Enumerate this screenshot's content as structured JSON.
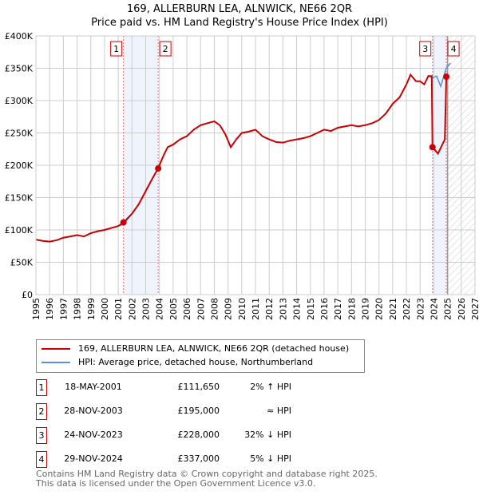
{
  "chart_data": {
    "type": "line",
    "title": "169, ALLERBURN LEA, ALNWICK, NE66 2QR",
    "subtitle": "Price paid vs. HM Land Registry's House Price Index (HPI)",
    "xlim": [
      1995,
      2027
    ],
    "ylim": [
      0,
      400000
    ],
    "x_ticks": [
      "1995",
      "1996",
      "1997",
      "1998",
      "1999",
      "2000",
      "2001",
      "2002",
      "2003",
      "2004",
      "2005",
      "2006",
      "2007",
      "2008",
      "2009",
      "2010",
      "2011",
      "2012",
      "2013",
      "2014",
      "2015",
      "2016",
      "2017",
      "2018",
      "2019",
      "2020",
      "2021",
      "2022",
      "2023",
      "2024",
      "2025",
      "2026",
      "2027"
    ],
    "y_ticks": [
      "£0",
      "£50K",
      "£100K",
      "£150K",
      "£200K",
      "£250K",
      "£300K",
      "£350K",
      "£400K"
    ],
    "grid": true,
    "series": [
      {
        "name": "169, ALLERBURN LEA, ALNWICK, NE66 2QR (detached house)",
        "color": "#cc0000",
        "x": [
          1995,
          1995.5,
          1996,
          1996.5,
          1997,
          1997.5,
          1998,
          1998.5,
          1999,
          1999.5,
          2000,
          2000.5,
          2001,
          2001.38,
          2002,
          2002.5,
          2003,
          2003.5,
          2003.9,
          2004.3,
          2004.6,
          2005,
          2005.5,
          2006,
          2006.5,
          2007,
          2007.5,
          2008,
          2008.4,
          2008.8,
          2009.2,
          2009.6,
          2010,
          2010.5,
          2011,
          2011.5,
          2012,
          2012.5,
          2013,
          2013.5,
          2014,
          2014.5,
          2015,
          2015.5,
          2016,
          2016.5,
          2017,
          2017.5,
          2018,
          2018.5,
          2019,
          2019.5,
          2020,
          2020.5,
          2021,
          2021.5,
          2022,
          2022.3,
          2022.7,
          2023,
          2023.3,
          2023.6,
          2023.85,
          2023.9,
          2024.3,
          2024.8,
          2024.91
        ],
        "y": [
          85000,
          83000,
          82000,
          84000,
          88000,
          90000,
          92000,
          90000,
          95000,
          98000,
          100000,
          103000,
          106000,
          111650,
          125000,
          140000,
          160000,
          180000,
          195000,
          215000,
          228000,
          232000,
          240000,
          245000,
          255000,
          262000,
          265000,
          268000,
          262000,
          248000,
          228000,
          240000,
          250000,
          252000,
          255000,
          245000,
          240000,
          236000,
          235000,
          238000,
          240000,
          242000,
          245000,
          250000,
          255000,
          253000,
          258000,
          260000,
          262000,
          260000,
          262000,
          265000,
          270000,
          280000,
          295000,
          305000,
          325000,
          340000,
          330000,
          330000,
          325000,
          338000,
          338000,
          228000,
          218000,
          240000,
          337000
        ]
      },
      {
        "name": "HPI: Average price, detached house, Northumberland",
        "color": "#5b8fd4",
        "x": [
          1995,
          1995.5,
          1996,
          1996.5,
          1997,
          1997.5,
          1998,
          1998.5,
          1999,
          1999.5,
          2000,
          2000.5,
          2001,
          2001.38,
          2002,
          2002.5,
          2003,
          2003.5,
          2003.9,
          2004.3,
          2004.6,
          2005,
          2005.5,
          2006,
          2006.5,
          2007,
          2007.5,
          2008,
          2008.4,
          2008.8,
          2009.2,
          2009.6,
          2010,
          2010.5,
          2011,
          2011.5,
          2012,
          2012.5,
          2013,
          2013.5,
          2014,
          2014.5,
          2015,
          2015.5,
          2016,
          2016.5,
          2017,
          2017.5,
          2018,
          2018.5,
          2019,
          2019.5,
          2020,
          2020.5,
          2021,
          2021.5,
          2022,
          2022.3,
          2022.7,
          2023,
          2023.3,
          2023.6,
          2023.9,
          2024.2,
          2024.5,
          2024.9,
          2025.2
        ],
        "y": [
          85000,
          83000,
          82000,
          84000,
          88000,
          90000,
          92000,
          90000,
          95000,
          98000,
          100000,
          103000,
          106000,
          109000,
          125000,
          140000,
          160000,
          180000,
          195000,
          215000,
          228000,
          232000,
          240000,
          245000,
          255000,
          262000,
          265000,
          268000,
          262000,
          248000,
          228000,
          240000,
          250000,
          252000,
          255000,
          245000,
          240000,
          236000,
          235000,
          238000,
          240000,
          242000,
          245000,
          250000,
          255000,
          253000,
          258000,
          260000,
          262000,
          260000,
          262000,
          265000,
          270000,
          280000,
          295000,
          305000,
          325000,
          340000,
          330000,
          330000,
          325000,
          338000,
          335000,
          338000,
          322000,
          350000,
          358000
        ]
      }
    ],
    "sales": [
      {
        "label": "1",
        "x": 2001.38,
        "y": 111650
      },
      {
        "label": "2",
        "x": 2003.91,
        "y": 195000
      },
      {
        "label": "3",
        "x": 2023.9,
        "y": 228000
      },
      {
        "label": "4",
        "x": 2024.91,
        "y": 337000
      }
    ],
    "shaded": [
      [
        2001.38,
        2003.91
      ],
      [
        2023.9,
        2024.91
      ]
    ],
    "future_from": 2025.0
  },
  "legend": [
    "169, ALLERBURN LEA, ALNWICK, NE66 2QR (detached house)",
    "HPI: Average price, detached house, Northumberland"
  ],
  "table": [
    {
      "n": "1",
      "date": "18-MAY-2001",
      "price": "£111,650",
      "hpi": "2% ↑ HPI"
    },
    {
      "n": "2",
      "date": "28-NOV-2003",
      "price": "£195,000",
      "hpi": "≈ HPI"
    },
    {
      "n": "3",
      "date": "24-NOV-2023",
      "price": "£228,000",
      "hpi": "32% ↓ HPI"
    },
    {
      "n": "4",
      "date": "29-NOV-2024",
      "price": "£337,000",
      "hpi": "5% ↓ HPI"
    }
  ],
  "footer": [
    "Contains HM Land Registry data © Crown copyright and database right 2025.",
    "This data is licensed under the Open Government Licence v3.0."
  ]
}
